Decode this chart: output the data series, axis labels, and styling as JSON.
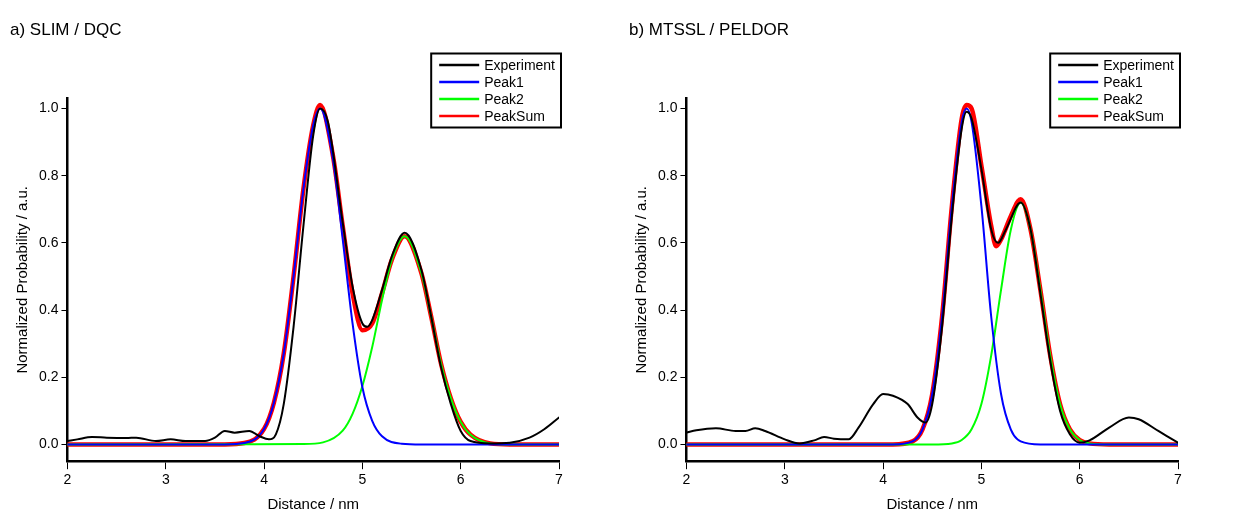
{
  "chart_data": [
    {
      "type": "line",
      "title": "a) SLIM / DQC",
      "xlabel": "Distance / nm",
      "ylabel": "Normalized Probability / a.u.",
      "xlim": [
        2,
        7
      ],
      "xticks": [
        2,
        3,
        4,
        5,
        6,
        7
      ],
      "ylim": [
        -0.05,
        1.03
      ],
      "yticks": [
        {
          "value": 0,
          "label": "0.0"
        },
        {
          "value": 0.2,
          "label": "0.2"
        },
        {
          "value": 0.4,
          "label": "0.4"
        },
        {
          "value": 0.6,
          "label": "0.6"
        },
        {
          "value": 0.8,
          "label": "0.8"
        },
        {
          "value": 1,
          "label": "1.0"
        }
      ],
      "grid": false,
      "legend": "top right",
      "marker": "none",
      "line_style": "solid",
      "series": [
        {
          "name": "Experiment",
          "color": "#000000",
          "x": [
            2.0,
            2.1,
            2.25,
            2.4,
            2.6,
            2.7,
            2.9,
            3.05,
            3.2,
            3.4,
            3.5,
            3.6,
            3.7,
            3.85,
            3.95,
            4.05,
            4.12,
            4.2,
            4.3,
            4.4,
            4.5,
            4.57,
            4.65,
            4.8,
            4.9,
            5.0,
            5.05,
            5.1,
            5.2,
            5.3,
            5.43,
            5.6,
            5.7,
            5.8,
            5.9,
            6.0,
            6.1,
            6.3,
            6.5,
            6.7,
            6.85,
            7.0
          ],
          "values": [
            0.01,
            0.015,
            0.022,
            0.02,
            0.019,
            0.02,
            0.01,
            0.015,
            0.01,
            0.01,
            0.02,
            0.04,
            0.035,
            0.04,
            0.025,
            0.015,
            0.03,
            0.12,
            0.35,
            0.65,
            0.92,
            1.0,
            0.96,
            0.66,
            0.47,
            0.36,
            0.35,
            0.37,
            0.46,
            0.56,
            0.63,
            0.52,
            0.38,
            0.23,
            0.12,
            0.04,
            0.01,
            0.003,
            0.005,
            0.02,
            0.045,
            0.08
          ]
        },
        {
          "name": "Peak1",
          "color": "#0000ff",
          "x": [
            2.0,
            3.6,
            3.8,
            4.0,
            4.1,
            4.2,
            4.3,
            4.4,
            4.5,
            4.57,
            4.7,
            4.8,
            4.9,
            5.0,
            5.1,
            5.2,
            5.4,
            5.6,
            7.0
          ],
          "values": [
            0,
            0,
            0.004,
            0.046,
            0.124,
            0.27,
            0.5,
            0.76,
            0.95,
            1.0,
            0.85,
            0.61,
            0.36,
            0.17,
            0.07,
            0.024,
            0.002,
            0,
            0
          ]
        },
        {
          "name": "Peak2",
          "color": "#00ff00",
          "x": [
            2.0,
            4.4,
            4.6,
            4.8,
            4.9,
            5.0,
            5.1,
            5.2,
            5.3,
            5.43,
            5.6,
            5.7,
            5.8,
            5.9,
            6.0,
            6.1,
            6.3,
            6.5,
            7.0
          ],
          "values": [
            0,
            0.001,
            0.006,
            0.041,
            0.091,
            0.174,
            0.29,
            0.43,
            0.55,
            0.62,
            0.51,
            0.38,
            0.24,
            0.137,
            0.067,
            0.029,
            0.003,
            0,
            0
          ]
        },
        {
          "name": "PeakSum",
          "color": "#ff0000",
          "x": [
            2.0,
            3.6,
            3.8,
            4.0,
            4.1,
            4.2,
            4.3,
            4.4,
            4.5,
            4.57,
            4.7,
            4.8,
            4.9,
            5.0,
            5.1,
            5.2,
            5.3,
            5.43,
            5.6,
            5.7,
            5.8,
            5.9,
            6.0,
            6.1,
            6.3,
            6.5,
            7.0
          ],
          "values": [
            0,
            0,
            0.004,
            0.046,
            0.124,
            0.27,
            0.5,
            0.76,
            0.95,
            1.01,
            0.86,
            0.65,
            0.45,
            0.34,
            0.36,
            0.45,
            0.55,
            0.62,
            0.51,
            0.38,
            0.24,
            0.137,
            0.067,
            0.029,
            0.003,
            0,
            0
          ]
        }
      ]
    },
    {
      "type": "line",
      "title": "b) MTSSL / PELDOR",
      "xlabel": "Distance / nm",
      "ylabel": "Normalized Probability / a.u.",
      "xlim": [
        2,
        7
      ],
      "xticks": [
        2,
        3,
        4,
        5,
        6,
        7
      ],
      "ylim": [
        -0.05,
        1.03
      ],
      "yticks": [
        {
          "value": 0,
          "label": "0.0"
        },
        {
          "value": 0.2,
          "label": "0.2"
        },
        {
          "value": 0.4,
          "label": "0.4"
        },
        {
          "value": 0.6,
          "label": "0.6"
        },
        {
          "value": 0.8,
          "label": "0.8"
        },
        {
          "value": 1,
          "label": "1.0"
        }
      ],
      "grid": false,
      "legend": "top right",
      "marker": "none",
      "line_style": "solid",
      "series": [
        {
          "name": "Experiment",
          "color": "#000000",
          "x": [
            2.0,
            2.1,
            2.3,
            2.5,
            2.6,
            2.7,
            2.8,
            3.0,
            3.15,
            3.3,
            3.4,
            3.5,
            3.65,
            3.75,
            3.9,
            4.0,
            4.1,
            4.25,
            4.35,
            4.43,
            4.5,
            4.6,
            4.7,
            4.8,
            4.85,
            4.9,
            5.0,
            5.1,
            5.17,
            5.25,
            5.4,
            5.5,
            5.6,
            5.7,
            5.8,
            5.9,
            6.0,
            6.1,
            6.3,
            6.5,
            6.6,
            6.8,
            7.0
          ],
          "values": [
            0.035,
            0.042,
            0.048,
            0.04,
            0.04,
            0.048,
            0.04,
            0.015,
            0.003,
            0.012,
            0.022,
            0.017,
            0.015,
            0.05,
            0.12,
            0.15,
            0.145,
            0.12,
            0.08,
            0.065,
            0.12,
            0.35,
            0.68,
            0.94,
            0.99,
            0.97,
            0.82,
            0.64,
            0.6,
            0.64,
            0.72,
            0.64,
            0.45,
            0.25,
            0.1,
            0.03,
            0.005,
            0.012,
            0.05,
            0.08,
            0.075,
            0.04,
            0.005
          ]
        },
        {
          "name": "Peak1",
          "color": "#0000ff",
          "x": [
            2.0,
            4.1,
            4.3,
            4.4,
            4.5,
            4.6,
            4.7,
            4.8,
            4.85,
            4.9,
            5.0,
            5.1,
            5.2,
            5.3,
            5.4,
            5.6,
            7.0
          ],
          "values": [
            0,
            0,
            0.009,
            0.044,
            0.15,
            0.38,
            0.71,
            0.96,
            1.0,
            0.96,
            0.71,
            0.38,
            0.15,
            0.044,
            0.009,
            0,
            0
          ]
        },
        {
          "name": "Peak2",
          "color": "#00ff00",
          "x": [
            2.0,
            4.5,
            4.7,
            4.8,
            4.9,
            5.0,
            5.1,
            5.2,
            5.3,
            5.4,
            5.5,
            5.6,
            5.7,
            5.8,
            5.9,
            6.0,
            6.1,
            6.3,
            7.0
          ],
          "values": [
            0,
            0,
            0.003,
            0.013,
            0.045,
            0.12,
            0.265,
            0.46,
            0.64,
            0.72,
            0.64,
            0.46,
            0.265,
            0.12,
            0.045,
            0.013,
            0.003,
            0,
            0
          ]
        },
        {
          "name": "PeakSum",
          "color": "#ff0000",
          "x": [
            2.0,
            4.1,
            4.3,
            4.4,
            4.5,
            4.6,
            4.7,
            4.8,
            4.85,
            4.9,
            5.0,
            5.1,
            5.15,
            5.2,
            5.3,
            5.4,
            5.5,
            5.6,
            5.7,
            5.8,
            5.9,
            6.0,
            6.1,
            6.3,
            7.0
          ],
          "values": [
            0,
            0,
            0.009,
            0.044,
            0.15,
            0.38,
            0.71,
            0.97,
            1.01,
            1.0,
            0.83,
            0.65,
            0.59,
            0.61,
            0.68,
            0.73,
            0.64,
            0.46,
            0.265,
            0.12,
            0.045,
            0.013,
            0.003,
            0,
            0
          ]
        }
      ]
    }
  ]
}
